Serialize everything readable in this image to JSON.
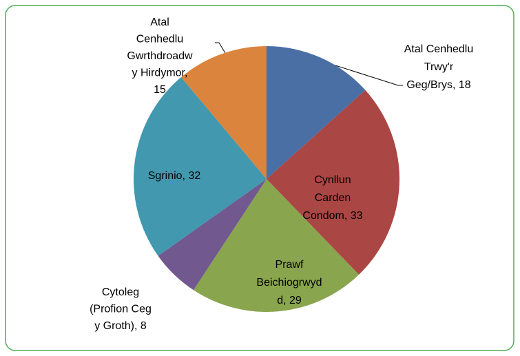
{
  "chart_data": {
    "type": "pie",
    "values": [
      18,
      33,
      29,
      8,
      32,
      15
    ],
    "value_labels": [
      [
        "Atal Cenhedlu",
        "Trwy'r",
        "Geg/Brys, 18"
      ],
      [
        "Cynllun",
        "Carden",
        "Condom, 33"
      ],
      [
        "Prawf",
        "Beichiogrwyd",
        "d, 29"
      ],
      [
        "Cytoleg",
        "(Profion Ceg",
        "y Groth), 8"
      ],
      [
        "Sgrinio, 32"
      ],
      [
        "Atal",
        "Cenhedlu",
        "Gwrthdroadw",
        "y Hirdymor,",
        "15"
      ]
    ],
    "colors": [
      "#4a6fa5",
      "#aa4643",
      "#89a54e",
      "#71588f",
      "#4198af",
      "#db843d"
    ]
  }
}
